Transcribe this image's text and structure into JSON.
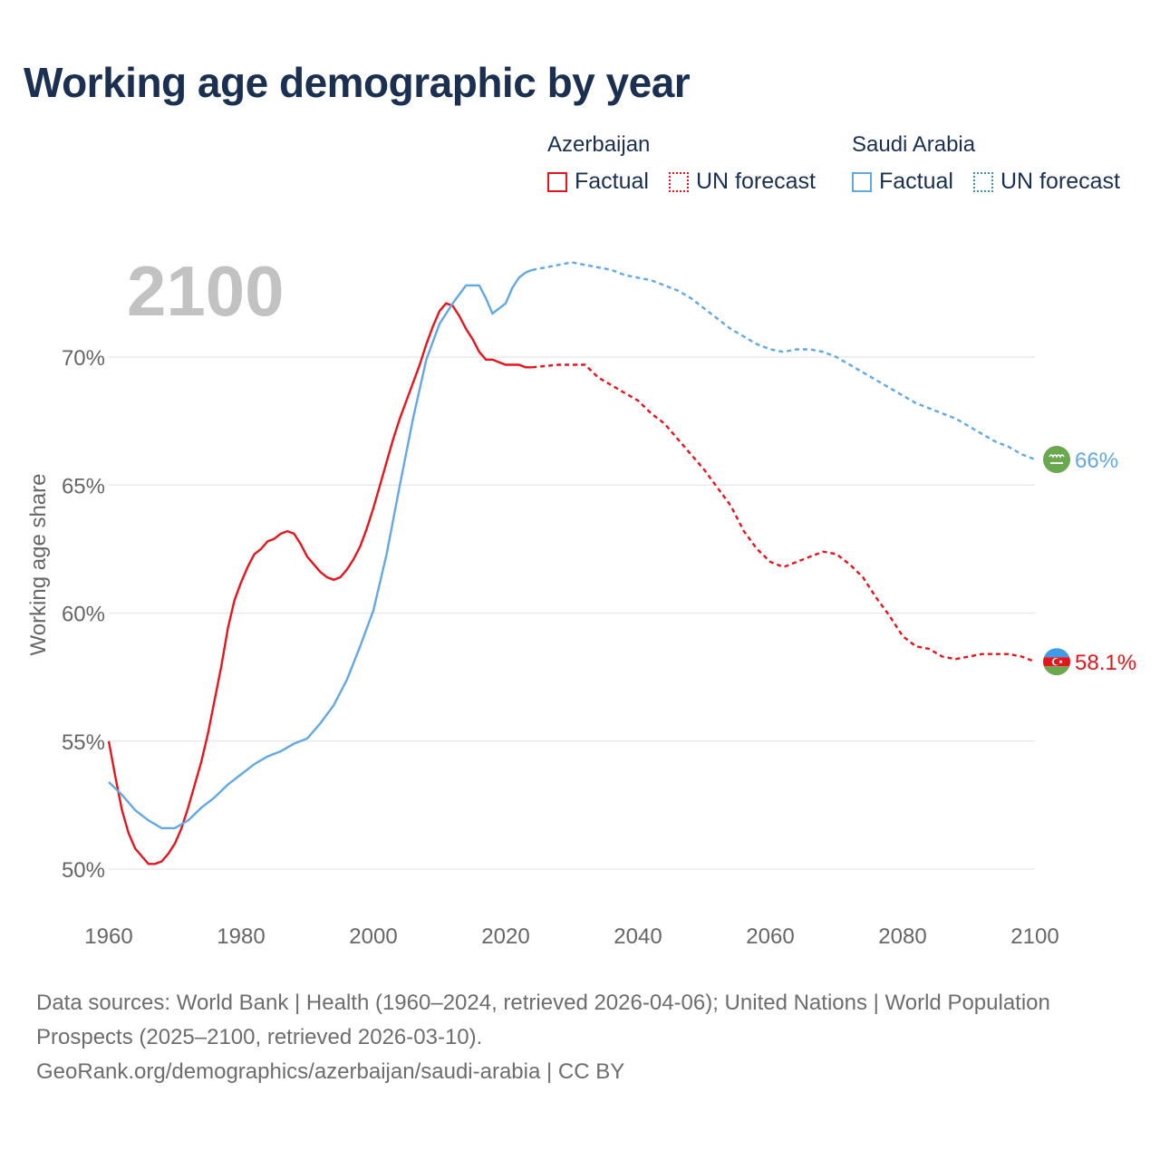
{
  "title": "Working age demographic by year",
  "year_label": "2100",
  "legend": {
    "groups": [
      {
        "country": "Azerbaijan",
        "factual_label": "Factual",
        "forecast_label": "UN forecast",
        "color": "#e8141b"
      },
      {
        "country": "Saudi Arabia",
        "factual_label": "Factual",
        "forecast_label": "UN forecast",
        "color": "#62a8e5"
      }
    ]
  },
  "footer": {
    "sources": "Data sources: World Bank | Health (1960–2024, retrieved 2026-04-06); United Nations | World Population Prospects (2025–2100, retrieved 2026-03-10).",
    "credit": "GeoRank.org/demographics/azerbaijan/saudi-arabia | CC BY"
  },
  "chart_data": {
    "type": "line",
    "title": "Working age demographic by year",
    "xlabel": "",
    "ylabel": "Working age share",
    "xlim": [
      1960,
      2100
    ],
    "ylim": [
      49,
      75
    ],
    "x_ticks": [
      1960,
      1980,
      2000,
      2020,
      2040,
      2060,
      2080,
      2100
    ],
    "y_ticks": [
      50,
      55,
      60,
      65,
      70
    ],
    "y_tick_labels": [
      "50%",
      "55%",
      "60%",
      "65%",
      "70%"
    ],
    "grid": true,
    "series": [
      {
        "name": "Azerbaijan",
        "color": "#e8141b",
        "end_label": "58.1%",
        "factual_x": [
          1960,
          1961,
          1962,
          1963,
          1964,
          1965,
          1966,
          1967,
          1968,
          1969,
          1970,
          1971,
          1972,
          1973,
          1974,
          1975,
          1976,
          1977,
          1978,
          1979,
          1980,
          1981,
          1982,
          1983,
          1984,
          1985,
          1986,
          1987,
          1988,
          1989,
          1990,
          1991,
          1992,
          1993,
          1994,
          1995,
          1996,
          1997,
          1998,
          1999,
          2000,
          2001,
          2002,
          2003,
          2004,
          2005,
          2006,
          2007,
          2008,
          2009,
          2010,
          2011,
          2012,
          2013,
          2014,
          2015,
          2016,
          2017,
          2018,
          2019,
          2020,
          2021,
          2022,
          2023,
          2024
        ],
        "factual_y": [
          55.0,
          53.6,
          52.3,
          51.4,
          50.8,
          50.5,
          50.2,
          50.2,
          50.3,
          50.6,
          51.0,
          51.6,
          52.4,
          53.3,
          54.2,
          55.3,
          56.6,
          57.9,
          59.4,
          60.5,
          61.2,
          61.8,
          62.3,
          62.5,
          62.8,
          62.9,
          63.1,
          63.2,
          63.1,
          62.7,
          62.2,
          61.9,
          61.6,
          61.4,
          61.3,
          61.4,
          61.7,
          62.1,
          62.6,
          63.3,
          64.1,
          65.0,
          65.9,
          66.8,
          67.6,
          68.3,
          69.0,
          69.7,
          70.5,
          71.2,
          71.8,
          72.1,
          72.0,
          71.6,
          71.1,
          70.7,
          70.2,
          69.9,
          69.9,
          69.8,
          69.7,
          69.7,
          69.7,
          69.6,
          69.6
        ],
        "forecast_x": [
          2024,
          2028,
          2032,
          2034,
          2036,
          2038,
          2040,
          2042,
          2044,
          2046,
          2048,
          2050,
          2052,
          2054,
          2056,
          2058,
          2060,
          2062,
          2064,
          2066,
          2068,
          2070,
          2072,
          2074,
          2076,
          2078,
          2080,
          2082,
          2084,
          2086,
          2088,
          2090,
          2092,
          2094,
          2096,
          2098,
          2100
        ],
        "forecast_y": [
          69.6,
          69.7,
          69.7,
          69.2,
          68.9,
          68.6,
          68.3,
          67.8,
          67.4,
          66.8,
          66.2,
          65.6,
          64.9,
          64.2,
          63.2,
          62.5,
          62.0,
          61.8,
          62.0,
          62.2,
          62.4,
          62.3,
          61.9,
          61.4,
          60.6,
          59.9,
          59.1,
          58.7,
          58.6,
          58.3,
          58.2,
          58.3,
          58.4,
          58.4,
          58.4,
          58.3,
          58.1
        ]
      },
      {
        "name": "Saudi Arabia",
        "color": "#62a8e5",
        "end_label": "66%",
        "factual_x": [
          1960,
          1962,
          1964,
          1966,
          1968,
          1970,
          1972,
          1974,
          1976,
          1978,
          1980,
          1982,
          1984,
          1986,
          1988,
          1990,
          1992,
          1994,
          1996,
          1998,
          2000,
          2002,
          2004,
          2006,
          2008,
          2010,
          2012,
          2014,
          2016,
          2017,
          2018,
          2019,
          2020,
          2021,
          2022,
          2023,
          2024
        ],
        "factual_y": [
          53.4,
          52.9,
          52.3,
          51.9,
          51.6,
          51.6,
          51.9,
          52.4,
          52.8,
          53.3,
          53.7,
          54.1,
          54.4,
          54.6,
          54.9,
          55.1,
          55.7,
          56.4,
          57.4,
          58.7,
          60.1,
          62.3,
          65.0,
          67.6,
          69.9,
          71.3,
          72.1,
          72.8,
          72.8,
          72.3,
          71.7,
          71.9,
          72.1,
          72.7,
          73.1,
          73.3,
          73.4
        ],
        "forecast_x": [
          2024,
          2026,
          2028,
          2030,
          2032,
          2034,
          2036,
          2038,
          2040,
          2042,
          2044,
          2046,
          2048,
          2050,
          2052,
          2054,
          2056,
          2058,
          2060,
          2062,
          2064,
          2066,
          2068,
          2070,
          2072,
          2074,
          2076,
          2078,
          2080,
          2082,
          2084,
          2086,
          2088,
          2090,
          2092,
          2094,
          2096,
          2098,
          2100
        ],
        "forecast_y": [
          73.4,
          73.5,
          73.6,
          73.7,
          73.6,
          73.5,
          73.4,
          73.2,
          73.1,
          73.0,
          72.8,
          72.6,
          72.3,
          71.9,
          71.5,
          71.1,
          70.8,
          70.5,
          70.3,
          70.2,
          70.3,
          70.3,
          70.2,
          70.0,
          69.7,
          69.4,
          69.1,
          68.8,
          68.5,
          68.2,
          68.0,
          67.8,
          67.6,
          67.3,
          67.0,
          66.7,
          66.5,
          66.2,
          66.0
        ]
      }
    ]
  }
}
